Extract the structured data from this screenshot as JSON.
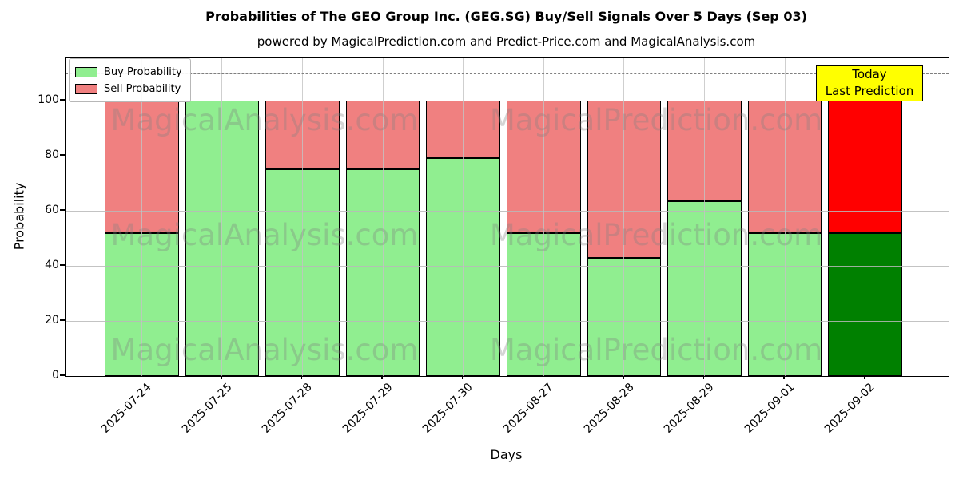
{
  "figure": {
    "title": "Probabilities of The GEO Group Inc. (GEG.SG) Buy/Sell Signals Over 5 Days (Sep 03)",
    "subtitle": "powered by MagicalPrediction.com and Predict-Price.com and MagicalAnalysis.com"
  },
  "axes": {
    "xlabel": "Days",
    "ylabel": "Probability",
    "yticks": [
      0,
      20,
      40,
      60,
      80,
      100
    ]
  },
  "legend": {
    "items": [
      {
        "label": "Buy Probability",
        "color": "#90EE90"
      },
      {
        "label": "Sell Probability",
        "color": "#F08080"
      }
    ]
  },
  "annotation": {
    "line1": "Today",
    "line2": "Last Prediction",
    "bg_color": "#FFFF00"
  },
  "watermarks": {
    "left": "MagicalAnalysis.com",
    "right": "MagicalPrediction.com"
  },
  "chart_data": {
    "type": "bar",
    "stacked": true,
    "title": "Probabilities of The GEO Group Inc. (GEG.SG) Buy/Sell Signals Over 5 Days (Sep 03)",
    "xlabel": "Days",
    "ylabel": "Probability",
    "ylim": [
      0,
      115
    ],
    "grid": true,
    "legend_position": "upper left",
    "categories": [
      "2025-07-24",
      "2025-07-25",
      "2025-07-28",
      "2025-07-29",
      "2025-07-30",
      "2025-08-27",
      "2025-08-28",
      "2025-08-29",
      "2025-09-01",
      "2025-09-02"
    ],
    "series": [
      {
        "name": "Buy Probability",
        "color": "#90EE90",
        "values": [
          52,
          100,
          75,
          75,
          79,
          52,
          43,
          63.5,
          52,
          52
        ]
      },
      {
        "name": "Sell Probability",
        "color": "#F08080",
        "values": [
          48,
          0,
          25,
          25,
          21,
          48,
          57,
          36.5,
          48,
          48
        ]
      }
    ],
    "today_index": 9,
    "today_colors": {
      "buy": "#008000",
      "sell": "#FF0000"
    },
    "dashed_line_y": 110
  }
}
